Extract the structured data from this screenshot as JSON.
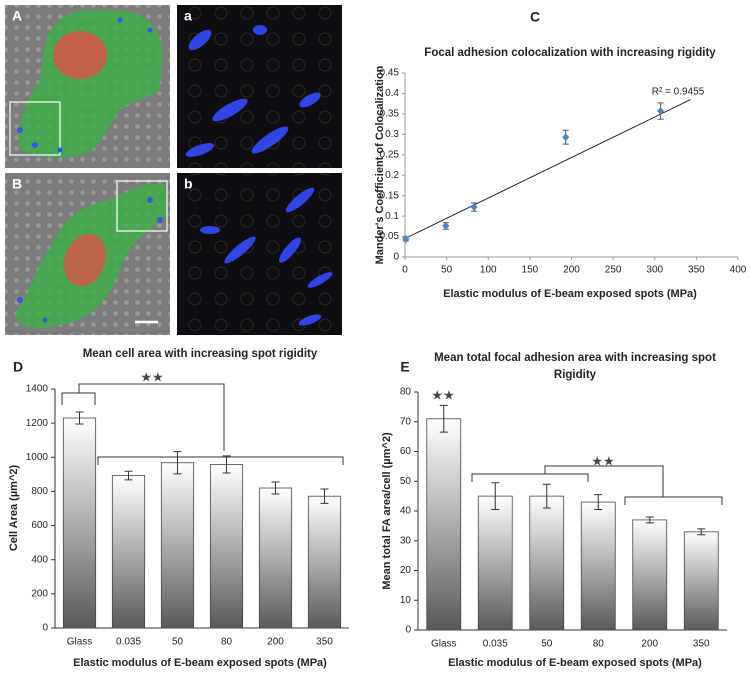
{
  "image_panels": [
    {
      "label": "A"
    },
    {
      "label": "a"
    },
    {
      "label": "B"
    },
    {
      "label": "b"
    }
  ],
  "chart_data": [
    {
      "label": "C",
      "type": "scatter",
      "title": "Focal adhesion colocalization with increasing rigidity",
      "xlabel": "Elastic modulus of E-beam exposed spots (MPa)",
      "ylabel": "Mander's Coefficient of Colocalization",
      "x": [
        1,
        49,
        83,
        193,
        307
      ],
      "values": [
        0.044,
        0.076,
        0.122,
        0.293,
        0.357
      ],
      "errors": [
        0.005,
        0.008,
        0.01,
        0.017,
        0.02
      ],
      "color": "#4a86c8",
      "trendline": {
        "x": [
          0,
          343
        ],
        "values": [
          0.045,
          0.385
        ],
        "color": "#222222"
      },
      "annotations": [
        "R² = 0.9455"
      ],
      "xlim": [
        0,
        400
      ],
      "xticks": [
        0,
        50,
        100,
        150,
        200,
        250,
        300,
        350,
        400
      ],
      "ylim": [
        0,
        0.45
      ],
      "yticks": [
        0,
        0.05,
        0.1,
        0.15,
        0.2,
        0.25,
        0.3,
        0.35,
        0.4,
        0.45
      ]
    },
    {
      "label": "D",
      "type": "bar",
      "title": "Mean cell area with increasing spot rigidity",
      "xlabel": "Elastic modulus of E-beam exposed spots (MPa)",
      "ylabel": "Cell Area (µm^2)",
      "categories": [
        "Glass",
        "0.035",
        "50",
        "80",
        "200",
        "350"
      ],
      "values": [
        1230,
        893,
        968,
        958,
        820,
        772
      ],
      "errors": [
        35,
        25,
        65,
        50,
        35,
        42
      ],
      "annotations": [
        "★★"
      ],
      "ylim": [
        0,
        1400
      ],
      "yticks": [
        0,
        200,
        400,
        600,
        800,
        1000,
        1200,
        1400
      ]
    },
    {
      "label": "E",
      "type": "bar",
      "title": [
        "Mean total focal adhesion area with increasing spot",
        "Rigidity"
      ],
      "xlabel": "Elastic modulus of E-beam exposed spots (MPa)",
      "ylabel": "Mean total FA area/cell (µm^2)",
      "categories": [
        "Glass",
        "0.035",
        "50",
        "80",
        "200",
        "350"
      ],
      "values": [
        71,
        45,
        45,
        43,
        37,
        33
      ],
      "errors": [
        4.5,
        4.5,
        4,
        2.5,
        1,
        1
      ],
      "annotations": [
        "★★",
        "★★"
      ],
      "ylim": [
        0,
        80
      ],
      "yticks": [
        0,
        10,
        20,
        30,
        40,
        50,
        60,
        70,
        80
      ]
    }
  ]
}
